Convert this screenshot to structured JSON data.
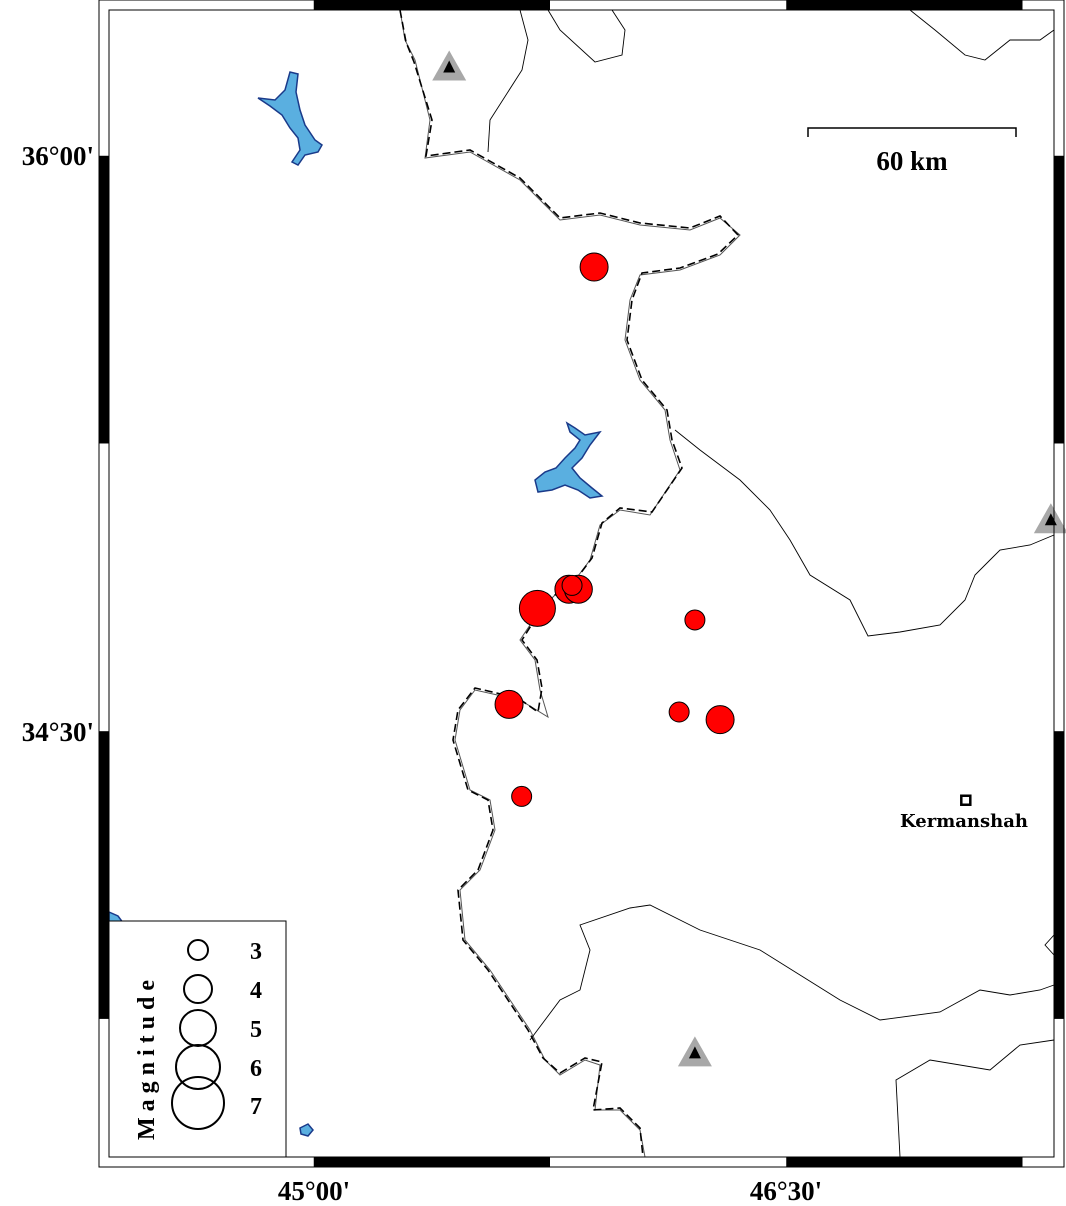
{
  "map": {
    "axes": {
      "lon_labels": [
        "45°00'",
        "46°30'"
      ],
      "lat_labels": [
        "36°00'",
        "34°30'"
      ],
      "lon_ticks": [
        45.0,
        46.5
      ],
      "lat_ticks": [
        36.0,
        34.5
      ],
      "lon_range": [
        44.35,
        47.35
      ],
      "lat_range": [
        33.39,
        36.38
      ]
    },
    "scale_bar": {
      "label": "60 km"
    },
    "city": {
      "name": "Kermanshah",
      "lon": 47.07,
      "lat": 34.32
    },
    "colors": {
      "earthquake": "#ff0000",
      "water": "#5aafe0",
      "station": "#a8a8a8"
    },
    "stations": [
      {
        "lon": 45.43,
        "lat": 36.23
      },
      {
        "lon": 46.21,
        "lat": 33.66
      },
      {
        "lon": 47.34,
        "lat": 35.05
      }
    ],
    "earthquakes": [
      {
        "lon": 45.89,
        "lat": 35.71,
        "mag": 4
      },
      {
        "lon": 45.71,
        "lat": 34.82,
        "mag": 5
      },
      {
        "lon": 45.81,
        "lat": 34.87,
        "mag": 4
      },
      {
        "lon": 45.84,
        "lat": 34.87,
        "mag": 4
      },
      {
        "lon": 45.82,
        "lat": 34.88,
        "mag": 3
      },
      {
        "lon": 46.21,
        "lat": 34.79,
        "mag": 3
      },
      {
        "lon": 45.62,
        "lat": 34.57,
        "mag": 4
      },
      {
        "lon": 46.16,
        "lat": 34.55,
        "mag": 3
      },
      {
        "lon": 46.29,
        "lat": 34.53,
        "mag": 4
      },
      {
        "lon": 45.66,
        "lat": 34.33,
        "mag": 3
      }
    ],
    "legend": {
      "title": "Magnitude",
      "items": [
        {
          "mag": 3,
          "label": "3"
        },
        {
          "mag": 4,
          "label": "4"
        },
        {
          "mag": 5,
          "label": "5"
        },
        {
          "mag": 6,
          "label": "6"
        },
        {
          "mag": 7,
          "label": "7"
        }
      ]
    }
  }
}
